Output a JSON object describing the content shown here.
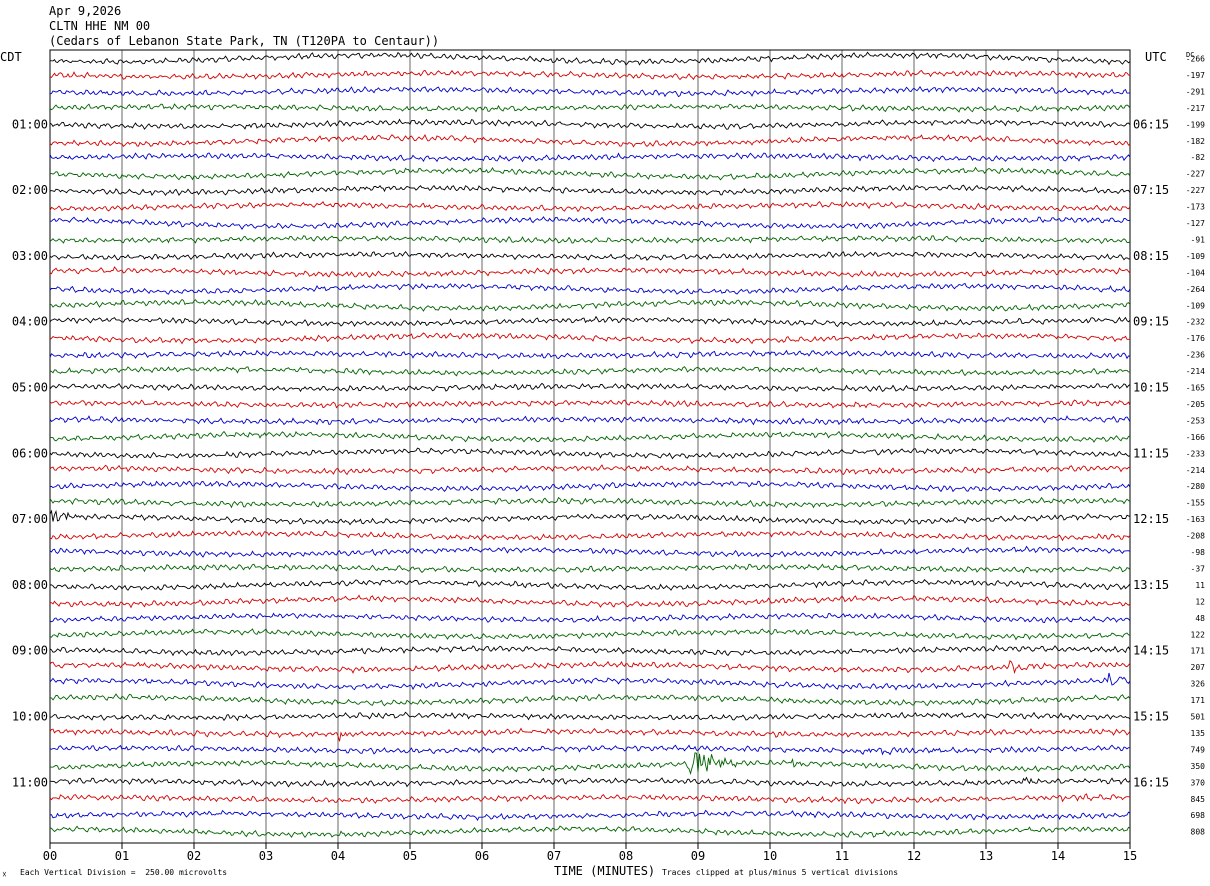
{
  "header": {
    "date": "Apr 9,2026",
    "station": "CLTN HHE NM 00",
    "location": "(Cedars of Lebanon State Park, TN (T120PA to Centaur))"
  },
  "footer": {
    "scale_note": "Each Vertical Division =  250.00 microvolts",
    "clip_note": "Traces clipped at plus/minus 5 vertical divisions"
  },
  "colors": {
    "trace_cycle": [
      "#000000",
      "#d40000",
      "#0000c8",
      "#006400"
    ],
    "grid": "#000000"
  },
  "chart_data": {
    "type": "line",
    "chart_kind": "helicorder seismogram",
    "xlabel": "TIME (MINUTES)",
    "xlim": [
      0,
      15
    ],
    "x_ticks": [
      "00",
      "01",
      "02",
      "03",
      "04",
      "05",
      "06",
      "07",
      "08",
      "09",
      "10",
      "11",
      "12",
      "13",
      "14",
      "15"
    ],
    "left_axis_label": "CDT",
    "right_axis_label": "UTC",
    "dc_label": "DC",
    "left_time_labels": [
      "01:00",
      "02:00",
      "03:00",
      "04:00",
      "05:00",
      "06:00",
      "07:00",
      "08:00",
      "09:00",
      "10:00",
      "11:00"
    ],
    "right_time_labels": [
      "06:15",
      "07:15",
      "08:15",
      "09:15",
      "10:15",
      "11:15",
      "12:15",
      "13:15",
      "14:15",
      "15:15",
      "16:15"
    ],
    "trace_count": 48,
    "dc_offsets": [
      "-266",
      "-197",
      "-291",
      "-217",
      "-199",
      "-182",
      "-82",
      "-227",
      "-227",
      "-173",
      "-127",
      "-91",
      "-109",
      "-104",
      "-264",
      "-109",
      "-232",
      "-176",
      "-236",
      "-214",
      "-165",
      "-205",
      "-253",
      "-166",
      "-233",
      "-214",
      "-280",
      "-155",
      "-163",
      "-208",
      "-98",
      "-37",
      "11",
      "12",
      "48",
      "122",
      "171",
      "207",
      "326",
      "171",
      "501",
      "135",
      "749",
      "350",
      "370",
      "845",
      "698",
      "808"
    ],
    "events": [
      {
        "trace": 28,
        "minute": 0.0,
        "duration": 0.6,
        "amplitude": 9,
        "note": "burst at start"
      },
      {
        "trace": 36,
        "minute": 4.2,
        "duration": 0.8,
        "amplitude": 3,
        "note": "wave"
      },
      {
        "trace": 37,
        "minute": 13.3,
        "duration": 0.5,
        "amplitude": 10,
        "note": "spike"
      },
      {
        "trace": 38,
        "minute": 14.7,
        "duration": 0.3,
        "amplitude": 16,
        "note": "clipped burst"
      },
      {
        "trace": 41,
        "minute": 4.0,
        "duration": 0.3,
        "amplitude": 6,
        "note": "burst"
      },
      {
        "trace": 42,
        "minute": 11.0,
        "duration": 4.0,
        "amplitude": 3,
        "note": "noise increase"
      },
      {
        "trace": 43,
        "minute": 8.85,
        "duration": 1.0,
        "amplitude": 20,
        "note": "large event"
      },
      {
        "trace": 43,
        "minute": 10.3,
        "duration": 0.3,
        "amplitude": 9,
        "note": "secondary event"
      },
      {
        "trace": 44,
        "minute": 13.5,
        "duration": 0.5,
        "amplitude": 4,
        "note": "bump"
      },
      {
        "trace": 45,
        "minute": 14.0,
        "duration": 1.0,
        "amplitude": 4,
        "note": "ramp"
      }
    ]
  }
}
